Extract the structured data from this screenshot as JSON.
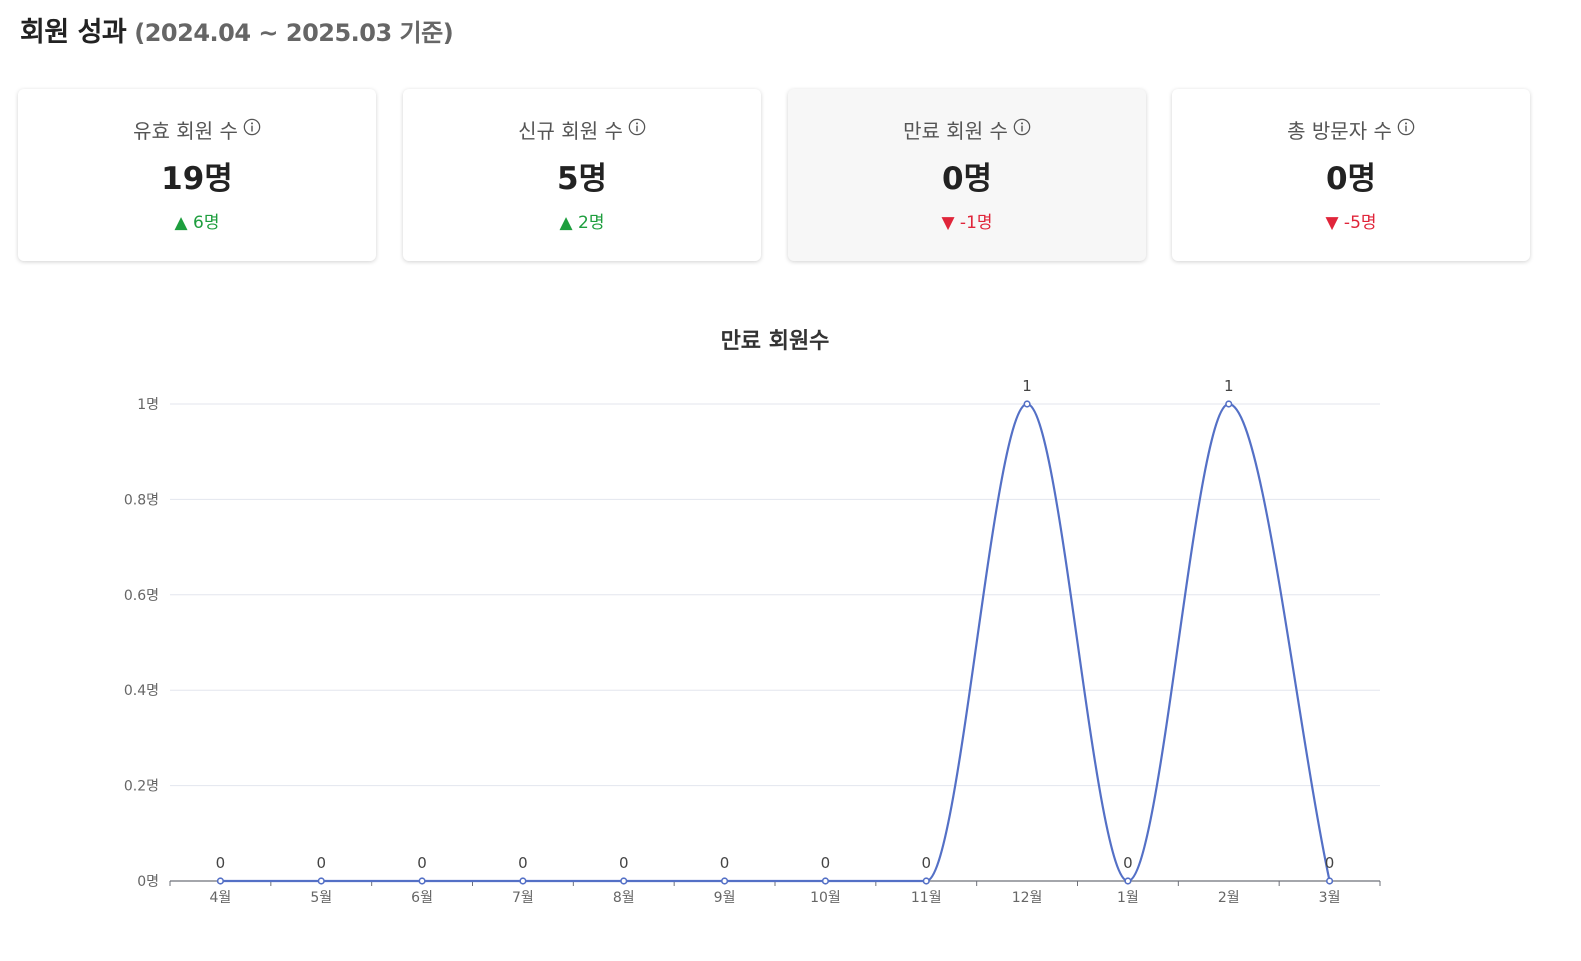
{
  "header": {
    "title": "회원 성과",
    "period": "(2024.04 ~ 2025.03 기준)"
  },
  "cards": [
    {
      "label": "유효 회원 수",
      "value": "19명",
      "delta": "▲ 6명",
      "direction": "up",
      "active": false
    },
    {
      "label": "신규 회원 수",
      "value": "5명",
      "delta": "▲ 2명",
      "direction": "up",
      "active": false
    },
    {
      "label": "만료 회원 수",
      "value": "0명",
      "delta": "▼ -1명",
      "direction": "down",
      "active": true
    },
    {
      "label": "총 방문자 수",
      "value": "0명",
      "delta": "▼ -5명",
      "direction": "down",
      "active": false
    }
  ],
  "icons": {
    "info": "info-circle-icon"
  },
  "colors": {
    "up": "#1e9e3e",
    "down": "#e0253a",
    "line": "#5470c6",
    "grid": "#e3e6ee"
  },
  "chart_data": {
    "type": "line",
    "title": "만료 회원수",
    "xlabel": "",
    "ylabel": "",
    "categories": [
      "4월",
      "5월",
      "6월",
      "7월",
      "8월",
      "9월",
      "10월",
      "11월",
      "12월",
      "1월",
      "2월",
      "3월"
    ],
    "series": [
      {
        "values": [
          0,
          0,
          0,
          0,
          0,
          0,
          0,
          0,
          1,
          0,
          1,
          0
        ]
      }
    ],
    "ylim": [
      0,
      1
    ],
    "yticks": [
      0,
      0.2,
      0.4,
      0.6,
      0.8,
      1
    ],
    "ytick_labels": [
      "0명",
      "0.2명",
      "0.4명",
      "0.6명",
      "0.8명",
      "1명"
    ],
    "grid": true,
    "smooth": true,
    "data_labels": true
  }
}
